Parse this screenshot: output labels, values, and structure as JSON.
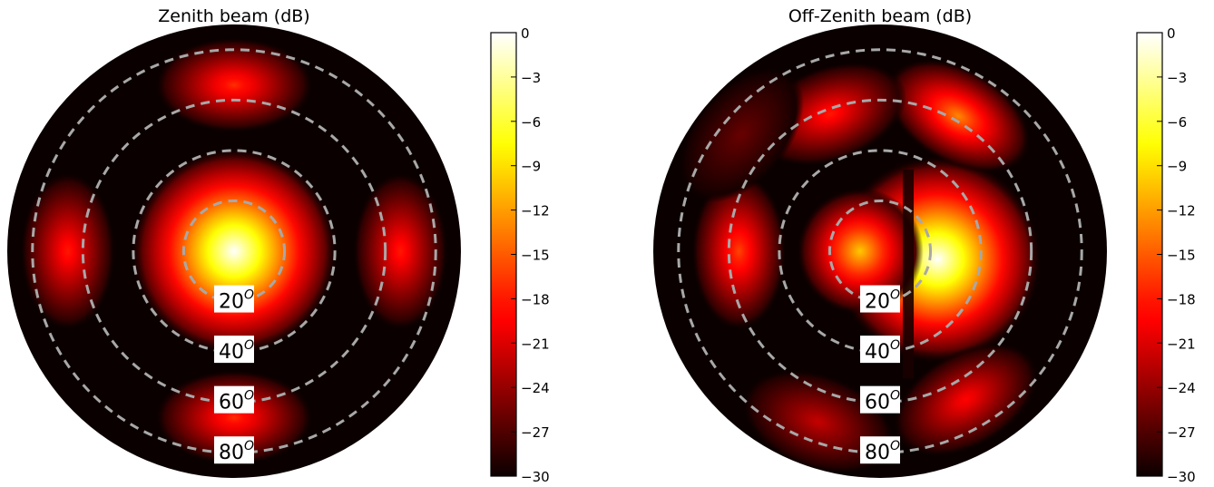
{
  "chart_data": [
    {
      "type": "heatmap",
      "projection": "polar (zenith at center)",
      "title": "Zenith beam (dB)",
      "colormap": "hot",
      "clim": [
        -30,
        0
      ],
      "colorbar_ticks": [
        "0",
        "−3",
        "−6",
        "−9",
        "−12",
        "−15",
        "−18",
        "−21",
        "−24",
        "−27",
        "−30"
      ],
      "zenith_circles_deg": [
        20,
        40,
        60,
        80
      ],
      "ring_labels": [
        {
          "base": "20",
          "sup": "O"
        },
        {
          "base": "40",
          "sup": "O"
        },
        {
          "base": "60",
          "sup": "O"
        },
        {
          "base": "80",
          "sup": "O"
        }
      ],
      "grid_style": "dashed gray circles",
      "lobes": [
        {
          "name": "main",
          "az_deg": 0,
          "zenith_deg": 0,
          "peak_db": 0
        },
        {
          "name": "sidelobe-north",
          "az_deg": 90,
          "zenith_deg": 66,
          "peak_db": -17
        },
        {
          "name": "sidelobe-south",
          "az_deg": 270,
          "zenith_deg": 66,
          "peak_db": -17
        },
        {
          "name": "sidelobe-east",
          "az_deg": 0,
          "zenith_deg": 66,
          "peak_db": -18
        },
        {
          "name": "sidelobe-west",
          "az_deg": 180,
          "zenith_deg": 66,
          "peak_db": -18
        }
      ]
    },
    {
      "type": "heatmap",
      "projection": "polar (zenith at center)",
      "title": "Off-Zenith beam (dB)",
      "colormap": "hot",
      "clim": [
        -30,
        0
      ],
      "colorbar_ticks": [
        "0",
        "−3",
        "−6",
        "−9",
        "−12",
        "−15",
        "−18",
        "−21",
        "−24",
        "−27",
        "−30"
      ],
      "zenith_circles_deg": [
        20,
        40,
        60,
        80
      ],
      "ring_labels": [
        {
          "base": "20",
          "sup": "O"
        },
        {
          "base": "40",
          "sup": "O"
        },
        {
          "base": "60",
          "sup": "O"
        },
        {
          "base": "80",
          "sup": "O"
        }
      ],
      "grid_style": "dashed gray circles",
      "lobes": [
        {
          "name": "main",
          "az_deg": -8,
          "zenith_deg": 23,
          "peak_db": 0
        },
        {
          "name": "grating-lobe-center",
          "az_deg": 180,
          "zenith_deg": 8,
          "peak_db": -10
        },
        {
          "name": "sidelobe-far-west",
          "az_deg": 180,
          "zenith_deg": 56,
          "peak_db": -16
        },
        {
          "name": "sidelobe-northeast",
          "az_deg": 60,
          "zenith_deg": 62,
          "peak_db": -13
        },
        {
          "name": "sidelobe-north",
          "az_deg": 110,
          "zenith_deg": 58,
          "peak_db": -18
        },
        {
          "name": "sidelobe-southeast",
          "az_deg": -60,
          "zenith_deg": 68,
          "peak_db": -19
        },
        {
          "name": "sidelobe-south",
          "az_deg": -110,
          "zenith_deg": 72,
          "peak_db": -22
        },
        {
          "name": "sidelobe-northwest",
          "az_deg": 140,
          "zenith_deg": 72,
          "peak_db": -26
        }
      ],
      "null_line": "vertical null slightly left of center"
    }
  ]
}
